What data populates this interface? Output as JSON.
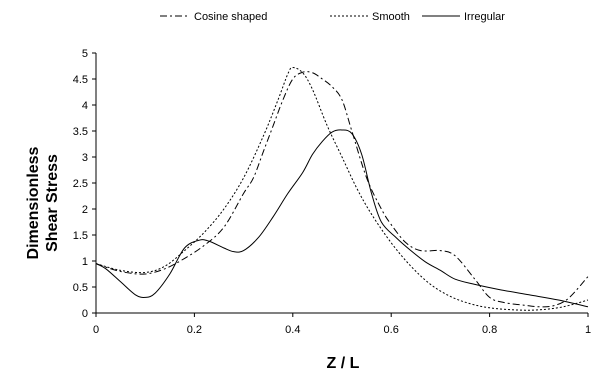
{
  "chart_data": {
    "type": "line",
    "title": "",
    "xlabel": "Z / L",
    "ylabel_lines": [
      "Dimensionless",
      "Shear Stress"
    ],
    "xlim": [
      0,
      1
    ],
    "ylim": [
      0,
      5
    ],
    "x_ticks": [
      0,
      0.2,
      0.4,
      0.6,
      0.8,
      1
    ],
    "x_tick_labels": [
      "0",
      "0.2",
      "0.4",
      "0.6",
      "0.8",
      "1"
    ],
    "y_ticks": [
      0,
      0.5,
      1,
      1.5,
      2,
      2.5,
      3,
      3.5,
      4,
      4.5,
      5
    ],
    "y_tick_labels": [
      "0",
      "0.5",
      "1",
      "1.5",
      "2",
      "2.5",
      "3",
      "3.5",
      "4",
      "4.5",
      "5"
    ],
    "grid": false,
    "legend_position": "top",
    "series": [
      {
        "name": "Cosine shaped",
        "style": "dash-dot",
        "color": "#000000",
        "points": [
          [
            0,
            0.95
          ],
          [
            0.03,
            0.85
          ],
          [
            0.06,
            0.78
          ],
          [
            0.1,
            0.75
          ],
          [
            0.14,
            0.85
          ],
          [
            0.18,
            1.05
          ],
          [
            0.22,
            1.3
          ],
          [
            0.26,
            1.65
          ],
          [
            0.3,
            2.3
          ],
          [
            0.32,
            2.6
          ],
          [
            0.34,
            3.1
          ],
          [
            0.36,
            3.6
          ],
          [
            0.38,
            4.1
          ],
          [
            0.4,
            4.5
          ],
          [
            0.42,
            4.63
          ],
          [
            0.44,
            4.62
          ],
          [
            0.46,
            4.5
          ],
          [
            0.48,
            4.35
          ],
          [
            0.5,
            4.1
          ],
          [
            0.52,
            3.5
          ],
          [
            0.55,
            2.6
          ],
          [
            0.58,
            2.0
          ],
          [
            0.6,
            1.7
          ],
          [
            0.63,
            1.35
          ],
          [
            0.66,
            1.2
          ],
          [
            0.7,
            1.2
          ],
          [
            0.73,
            1.1
          ],
          [
            0.77,
            0.65
          ],
          [
            0.8,
            0.3
          ],
          [
            0.83,
            0.2
          ],
          [
            0.87,
            0.15
          ],
          [
            0.9,
            0.12
          ],
          [
            0.93,
            0.14
          ],
          [
            0.96,
            0.28
          ],
          [
            1.0,
            0.7
          ]
        ]
      },
      {
        "name": "Smooth",
        "style": "dotted",
        "color": "#000000",
        "points": [
          [
            0,
            0.95
          ],
          [
            0.05,
            0.82
          ],
          [
            0.1,
            0.78
          ],
          [
            0.14,
            0.9
          ],
          [
            0.18,
            1.2
          ],
          [
            0.22,
            1.55
          ],
          [
            0.26,
            2.0
          ],
          [
            0.3,
            2.6
          ],
          [
            0.34,
            3.4
          ],
          [
            0.37,
            4.1
          ],
          [
            0.39,
            4.6
          ],
          [
            0.4,
            4.72
          ],
          [
            0.42,
            4.62
          ],
          [
            0.44,
            4.3
          ],
          [
            0.47,
            3.6
          ],
          [
            0.5,
            3.0
          ],
          [
            0.53,
            2.4
          ],
          [
            0.56,
            1.9
          ],
          [
            0.6,
            1.35
          ],
          [
            0.64,
            0.9
          ],
          [
            0.68,
            0.55
          ],
          [
            0.72,
            0.32
          ],
          [
            0.76,
            0.18
          ],
          [
            0.8,
            0.1
          ],
          [
            0.85,
            0.06
          ],
          [
            0.9,
            0.06
          ],
          [
            0.95,
            0.12
          ],
          [
            1.0,
            0.25
          ]
        ]
      },
      {
        "name": "Irregular",
        "style": "solid",
        "color": "#000000",
        "points": [
          [
            0,
            0.95
          ],
          [
            0.02,
            0.85
          ],
          [
            0.05,
            0.6
          ],
          [
            0.08,
            0.35
          ],
          [
            0.1,
            0.3
          ],
          [
            0.12,
            0.38
          ],
          [
            0.15,
            0.75
          ],
          [
            0.18,
            1.25
          ],
          [
            0.21,
            1.4
          ],
          [
            0.23,
            1.38
          ],
          [
            0.26,
            1.25
          ],
          [
            0.28,
            1.18
          ],
          [
            0.3,
            1.2
          ],
          [
            0.33,
            1.45
          ],
          [
            0.36,
            1.85
          ],
          [
            0.39,
            2.3
          ],
          [
            0.42,
            2.7
          ],
          [
            0.44,
            3.05
          ],
          [
            0.46,
            3.3
          ],
          [
            0.48,
            3.48
          ],
          [
            0.5,
            3.52
          ],
          [
            0.52,
            3.45
          ],
          [
            0.54,
            3.05
          ],
          [
            0.56,
            2.3
          ],
          [
            0.58,
            1.75
          ],
          [
            0.61,
            1.45
          ],
          [
            0.64,
            1.2
          ],
          [
            0.67,
            0.98
          ],
          [
            0.7,
            0.82
          ],
          [
            0.73,
            0.65
          ],
          [
            0.77,
            0.55
          ],
          [
            0.82,
            0.45
          ],
          [
            0.88,
            0.35
          ],
          [
            0.94,
            0.25
          ],
          [
            1.0,
            0.12
          ]
        ]
      }
    ]
  }
}
